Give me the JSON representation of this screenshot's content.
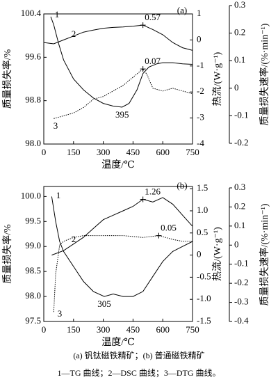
{
  "chart_data": [
    {
      "type": "line",
      "panel_label": "(a)",
      "xlabel": "温度/℃",
      "ylabel": "质量损失率/%",
      "y2label": "热流/(W·g⁻¹)",
      "y3label": "质量损失速率/(%·min⁻¹)",
      "xlim": [
        0,
        750
      ],
      "xticks": [
        0,
        150,
        300,
        450,
        600,
        750
      ],
      "ylim": [
        98.0,
        100.4
      ],
      "yticks": [
        {
          "value": 98.0,
          "label": "98.0"
        },
        98.8,
        99.6,
        100.4
      ],
      "y2lim": [
        -4,
        1
      ],
      "y2ticks": [
        -4,
        -3,
        -2,
        -1,
        0,
        1
      ],
      "y3lim": [
        -0.2,
        0.3
      ],
      "y3ticks": [
        -0.2,
        -0.1,
        0,
        0.1,
        0.2,
        0.3
      ],
      "series": [
        {
          "name": "1",
          "color": "#000000",
          "style": "solid",
          "axis": "y",
          "x": [
            35,
            50,
            75,
            100,
            150,
            200,
            250,
            300,
            350,
            395,
            430,
            470,
            500,
            530,
            570,
            600,
            650,
            700,
            750
          ],
          "values": [
            100.35,
            100.2,
            99.85,
            99.55,
            99.2,
            99.0,
            98.85,
            98.75,
            98.7,
            98.68,
            98.75,
            99.0,
            99.3,
            99.42,
            99.48,
            99.5,
            99.5,
            99.48,
            99.47
          ]
        },
        {
          "name": "2",
          "color": "#000000",
          "style": "solid",
          "axis": "y2",
          "x": [
            0,
            50,
            100,
            150,
            200,
            250,
            300,
            350,
            400,
            450,
            500,
            550,
            600,
            650,
            700,
            750
          ],
          "values": [
            -0.1,
            -0.15,
            0,
            0.15,
            0.3,
            0.38,
            0.45,
            0.48,
            0.5,
            0.53,
            0.57,
            0.4,
            0.2,
            -0.1,
            -0.3,
            -0.4
          ]
        },
        {
          "name": "3",
          "color": "#000000",
          "style": "dotted",
          "axis": "y3",
          "x": [
            50,
            100,
            150,
            200,
            250,
            300,
            350,
            400,
            450,
            500,
            520,
            550,
            600,
            650,
            700,
            750
          ],
          "values": [
            -0.11,
            -0.1,
            -0.09,
            -0.07,
            -0.04,
            -0.03,
            -0.01,
            0.01,
            0.04,
            0.07,
            0.05,
            0.0,
            -0.01,
            0.0,
            -0.01,
            -0.02
          ]
        }
      ],
      "annotations": [
        {
          "text": "0.57",
          "x": 500,
          "y": 0.57,
          "axis": "y2"
        },
        {
          "text": "0.07",
          "x": 500,
          "y": 0.07,
          "axis": "y3"
        },
        {
          "text": "395",
          "x": 395,
          "y": 98.68,
          "axis": "y"
        }
      ]
    },
    {
      "type": "line",
      "panel_label": "(b)",
      "xlabel": "温度/℃",
      "ylabel": "质量损失率/%",
      "y2label": "热流/(W·g⁻¹)",
      "y3label": "质量损失速率/(%·min⁻¹)",
      "xlim": [
        0,
        750
      ],
      "xticks": [
        0,
        150,
        300,
        450,
        600,
        750
      ],
      "ylim": [
        97.5,
        100.2
      ],
      "yticks": [
        97.5,
        {
          "value": 98.0,
          "label": "98.0"
        },
        98.5,
        {
          "value": 99.0,
          "label": "99.0"
        },
        99.5,
        {
          "value": 100.0,
          "label": "100.0"
        }
      ],
      "y2lim": [
        -1.5,
        1.55
      ],
      "y2ticks": [
        -1.5,
        {
          "value": -1.0,
          "label": "-1.0"
        },
        -0.5,
        0,
        0.5,
        {
          "value": 1.0,
          "label": "1.0"
        },
        1.5
      ],
      "y3lim": [
        -0.4,
        0.3
      ],
      "y3ticks": [
        -0.4,
        -0.3,
        -0.2,
        -0.1,
        0,
        0.1,
        0.2,
        0.3
      ],
      "series": [
        {
          "name": "1",
          "color": "#000000",
          "style": "solid",
          "axis": "y",
          "x": [
            40,
            60,
            80,
            100,
            150,
            200,
            250,
            305,
            350,
            400,
            450,
            500,
            550,
            600,
            650,
            700,
            750
          ],
          "values": [
            100.0,
            99.5,
            99.1,
            98.9,
            98.6,
            98.3,
            98.1,
            98.0,
            98.05,
            98.0,
            98.0,
            98.1,
            98.4,
            98.7,
            98.9,
            99.0,
            99.1
          ]
        },
        {
          "name": "2",
          "color": "#000000",
          "style": "solid",
          "axis": "y2",
          "x": [
            40,
            100,
            150,
            200,
            250,
            300,
            350,
            400,
            450,
            500,
            550,
            600,
            650,
            700,
            750
          ],
          "values": [
            0,
            0.1,
            0.25,
            0.4,
            0.6,
            0.8,
            0.9,
            1.0,
            1.1,
            1.26,
            1.2,
            1.3,
            1.15,
            0.9,
            0.65
          ]
        },
        {
          "name": "3",
          "color": "#000000",
          "style": "dotted",
          "axis": "y3",
          "x": [
            50,
            60,
            80,
            100,
            150,
            200,
            300,
            400,
            500,
            580,
            650,
            700,
            750
          ],
          "values": [
            -0.35,
            -0.15,
            0.0,
            0.02,
            0.04,
            0.05,
            0.05,
            0.05,
            0.04,
            0.05,
            0.03,
            0.02,
            0.02
          ]
        }
      ],
      "annotations": [
        {
          "text": "1.26",
          "x": 500,
          "y": 1.26,
          "axis": "y2"
        },
        {
          "text": "0.05",
          "x": 580,
          "y": 0.05,
          "axis": "y3"
        },
        {
          "text": "305",
          "x": 305,
          "y": 98.0,
          "axis": "y"
        }
      ]
    }
  ],
  "caption": [
    "(a) 钒钛磁铁精矿；(b) 普通磁铁精矿",
    "1—TG 曲线；2—DSC 曲线；3—DTG 曲线。"
  ]
}
